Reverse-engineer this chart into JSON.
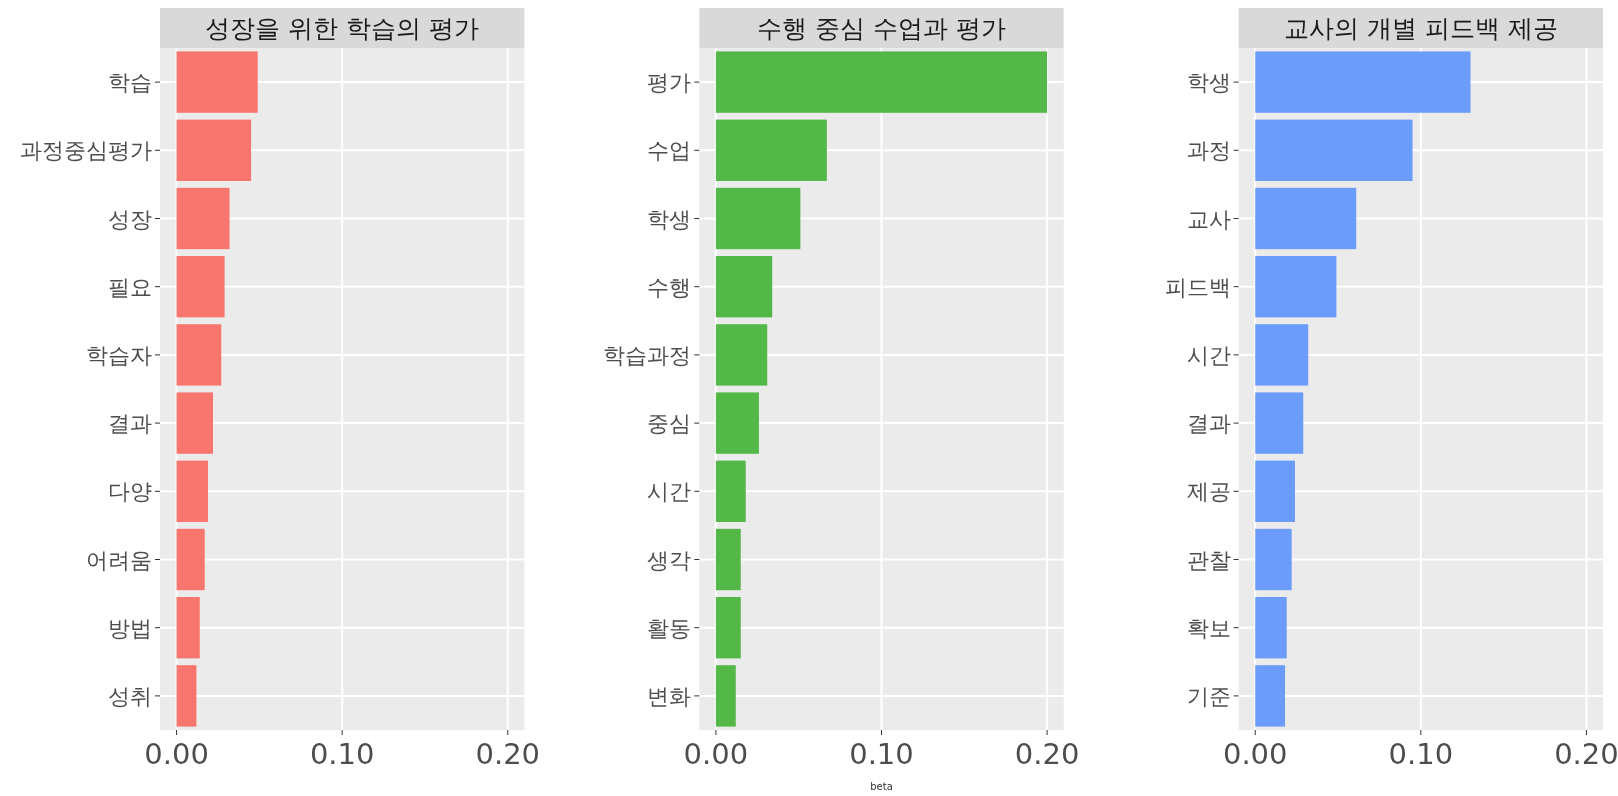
{
  "chart_data": [
    {
      "type": "bar",
      "orientation": "horizontal",
      "title": "성장을 위한 학습의 평가",
      "categories": [
        "학습",
        "과정중심평가",
        "성장",
        "필요",
        "학습자",
        "결과",
        "다양",
        "어려움",
        "방법",
        "성취"
      ],
      "values": [
        0.049,
        0.045,
        0.032,
        0.029,
        0.027,
        0.022,
        0.019,
        0.017,
        0.014,
        0.012
      ],
      "color": "#f8766d",
      "xlim": [
        -0.01,
        0.21
      ],
      "xticks": [
        {
          "value": 0,
          "label": "0.00"
        },
        {
          "value": 0.1,
          "label": "0.10"
        },
        {
          "value": 0.2,
          "label": "0.20"
        }
      ],
      "grid": true
    },
    {
      "type": "bar",
      "orientation": "horizontal",
      "title": "수행 중심 수업과 평가",
      "xlabel": "beta",
      "categories": [
        "평가",
        "수업",
        "학생",
        "수행",
        "학습과정",
        "중심",
        "시간",
        "생각",
        "활동",
        "변화"
      ],
      "values": [
        0.2,
        0.067,
        0.051,
        0.034,
        0.031,
        0.026,
        0.018,
        0.015,
        0.015,
        0.012
      ],
      "color": "#53b848",
      "xlim": [
        -0.01,
        0.21
      ],
      "xticks": [
        {
          "value": 0,
          "label": "0.00"
        },
        {
          "value": 0.1,
          "label": "0.10"
        },
        {
          "value": 0.2,
          "label": "0.20"
        }
      ],
      "grid": true
    },
    {
      "type": "bar",
      "orientation": "horizontal",
      "title": "교사의 개별 피드백 제공",
      "categories": [
        "학생",
        "과정",
        "교사",
        "피드백",
        "시간",
        "결과",
        "제공",
        "관찰",
        "확보",
        "기준"
      ],
      "values": [
        0.13,
        0.095,
        0.061,
        0.049,
        0.032,
        0.029,
        0.024,
        0.022,
        0.019,
        0.018
      ],
      "color": "#6b9cfa",
      "xlim": [
        -0.01,
        0.21
      ],
      "xticks": [
        {
          "value": 0,
          "label": "0.00"
        },
        {
          "value": 0.1,
          "label": "0.10"
        },
        {
          "value": 0.2,
          "label": "0.20"
        }
      ],
      "grid": true
    }
  ]
}
